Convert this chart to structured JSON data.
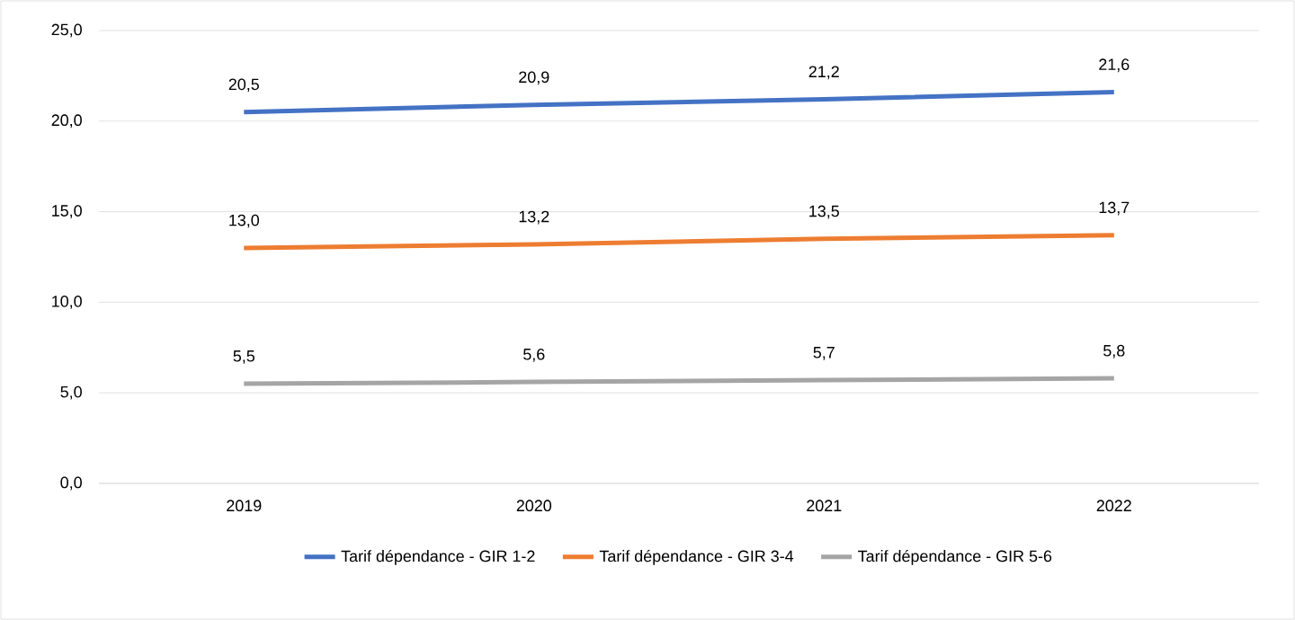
{
  "chart_data": {
    "type": "line",
    "categories": [
      "2019",
      "2020",
      "2021",
      "2022"
    ],
    "series": [
      {
        "name": "Tarif dépendance - GIR 1-2",
        "color": "#4472c4",
        "values": [
          20.5,
          20.9,
          21.2,
          21.6
        ],
        "value_labels": [
          "20,5",
          "20,9",
          "21,2",
          "21,6"
        ]
      },
      {
        "name": "Tarif dépendance - GIR 3-4",
        "color": "#ed7d31",
        "values": [
          13.0,
          13.2,
          13.5,
          13.7
        ],
        "value_labels": [
          "13,0",
          "13,2",
          "13,5",
          "13,7"
        ]
      },
      {
        "name": "Tarif dépendance - GIR 5-6",
        "color": "#a5a5a5",
        "values": [
          5.5,
          5.6,
          5.7,
          5.8
        ],
        "value_labels": [
          "5,5",
          "5,6",
          "5,7",
          "5,8"
        ]
      }
    ],
    "ylim": [
      0,
      25
    ],
    "yticks": [
      {
        "value": 0,
        "label": "0,0"
      },
      {
        "value": 5,
        "label": "5,0"
      },
      {
        "value": 10,
        "label": "10,0"
      },
      {
        "value": 15,
        "label": "15,0"
      },
      {
        "value": 20,
        "label": "20,0"
      },
      {
        "value": 25,
        "label": "25,0"
      }
    ],
    "grid": "y",
    "legend": "bottom",
    "marker": "none",
    "line_style": "solid"
  }
}
